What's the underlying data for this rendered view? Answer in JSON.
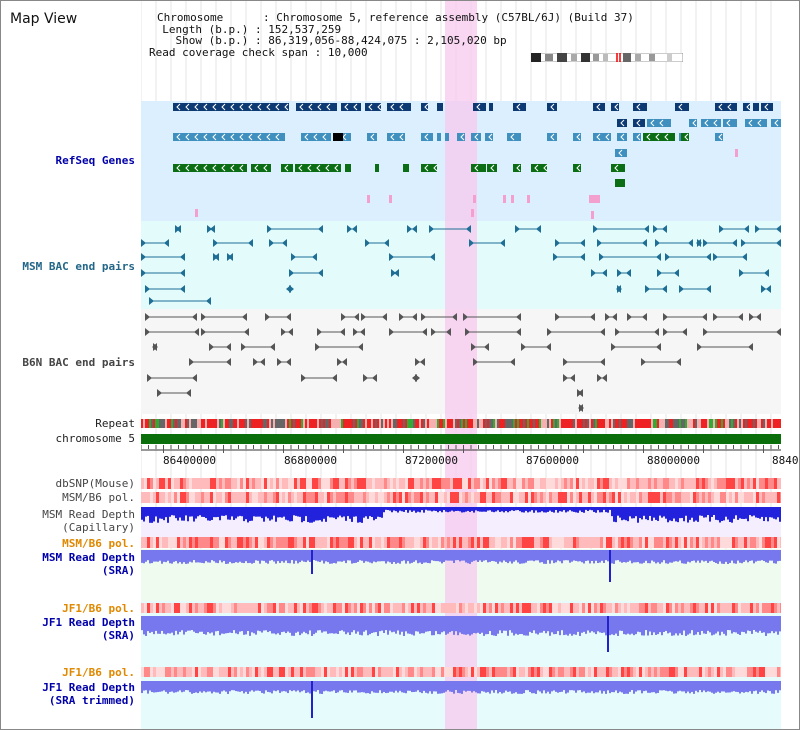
{
  "title": "Map View",
  "info": {
    "chrom_label": "Chromosome",
    "chrom_value": "Chromosome 5, reference assembly (C57BL/6J) (Build 37)",
    "length_label": "Length (b.p.)",
    "length_value": "152,537,259",
    "show_label": "Show (b.p.)",
    "show_value": "86,319,056-88,424,075 : 2,105,020 bp",
    "coverage_label": "Read coverage check span",
    "coverage_value": "10,000"
  },
  "labels": {
    "refseq": "RefSeq Genes",
    "msm_bac": "MSM BAC end pairs",
    "b6n_bac": "B6N BAC end pairs",
    "repeat": "Repeat",
    "chromosome": "chromosome 5",
    "dbsnp": "dbSNP(Mouse)",
    "msm_b6_pol_1": "MSM/B6 pol.",
    "msm_read_cap_1": "MSM Read Depth",
    "msm_read_cap_2": "(Capillary)",
    "msm_b6_pol_2": "MSM/B6 pol.",
    "msm_read_sra_1": "MSM Read Depth",
    "msm_read_sra_2": "(SRA)",
    "jf1_b6_pol_1": "JF1/B6 pol.",
    "jf1_read_sra_1": "JF1 Read Depth",
    "jf1_read_sra_2": "(SRA)",
    "jf1_b6_pol_2": "JF1/B6 pol.",
    "jf1_read_trim_1": "JF1 Read Depth",
    "jf1_read_trim_2": "(SRA trimmed)"
  },
  "axis_ticks": [
    "86400000",
    "86800000",
    "87200000",
    "87600000",
    "88000000",
    "8840"
  ],
  "colors": {
    "refseq_bg": "#dcefff",
    "msm_bg": "#e3fbfb",
    "b6n_bg": "#f6f6f6",
    "highlight": "#f7c9ef",
    "chromosome": "#0a6e0a",
    "gene_navy": "#0d3a73",
    "gene_light": "#3f8fbf",
    "gene_green": "#0c6e14",
    "bac_teal": "#1e6e95",
    "bac_grey": "#555555",
    "depth_blue": "#2222dd",
    "depth_sra": "#7777ee",
    "pol_red": "#ff3333"
  }
}
